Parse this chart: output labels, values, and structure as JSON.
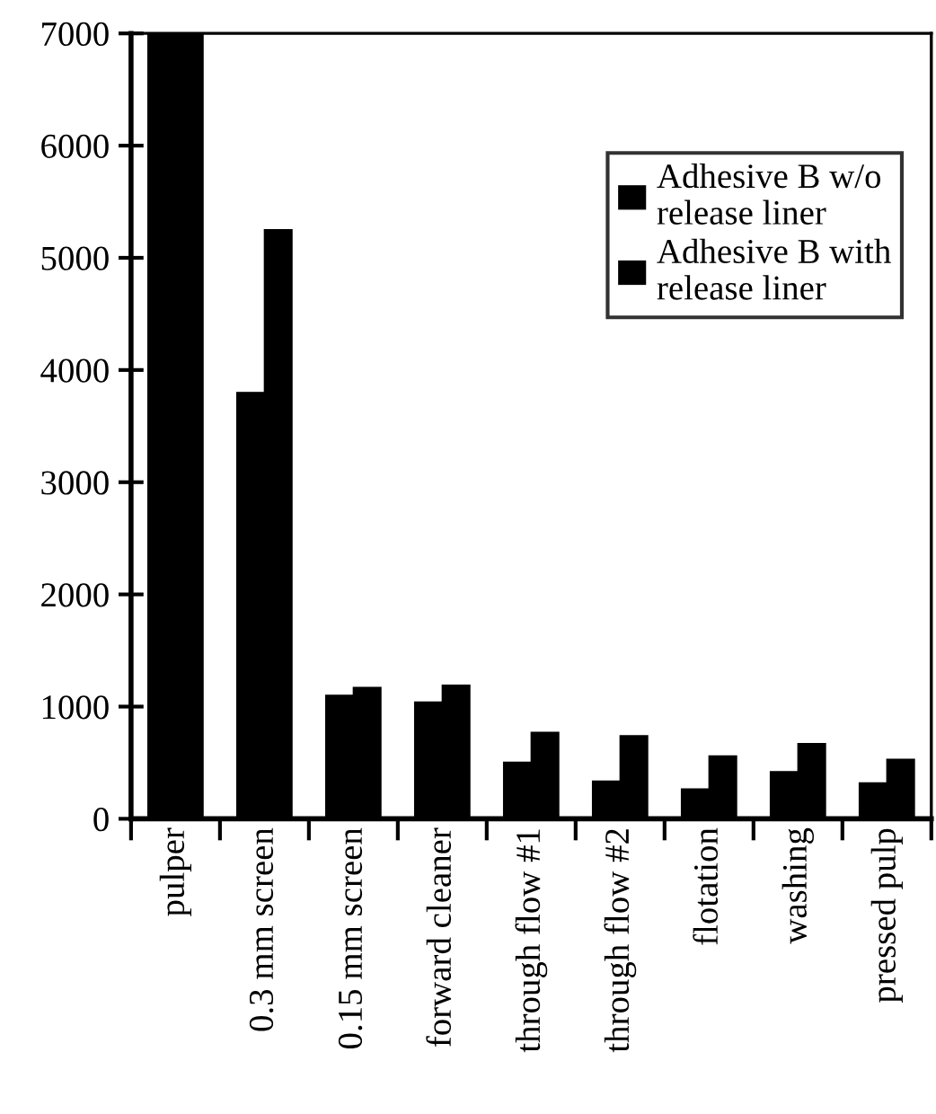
{
  "chart_data": {
    "type": "bar",
    "categories": [
      "pulper",
      "0.3 mm screen",
      "0.15 mm screen",
      "forward cleaner",
      "through flow #1",
      "through flow #2",
      "flotation",
      "washing",
      "pressed pulp"
    ],
    "series": [
      {
        "name": "Adhesive B w/o release liner",
        "color": "#000000",
        "values": [
          7000,
          3800,
          1100,
          1040,
          505,
          335,
          265,
          420,
          320
        ]
      },
      {
        "name": "Adhesive B with release liner",
        "color": "#000000",
        "values": [
          7000,
          5250,
          1170,
          1190,
          770,
          740,
          560,
          670,
          530
        ]
      }
    ],
    "ylim": [
      0,
      7000
    ],
    "yticks": [
      0,
      1000,
      2000,
      3000,
      4000,
      5000,
      6000,
      7000
    ],
    "grid": false,
    "legend": "top right"
  }
}
